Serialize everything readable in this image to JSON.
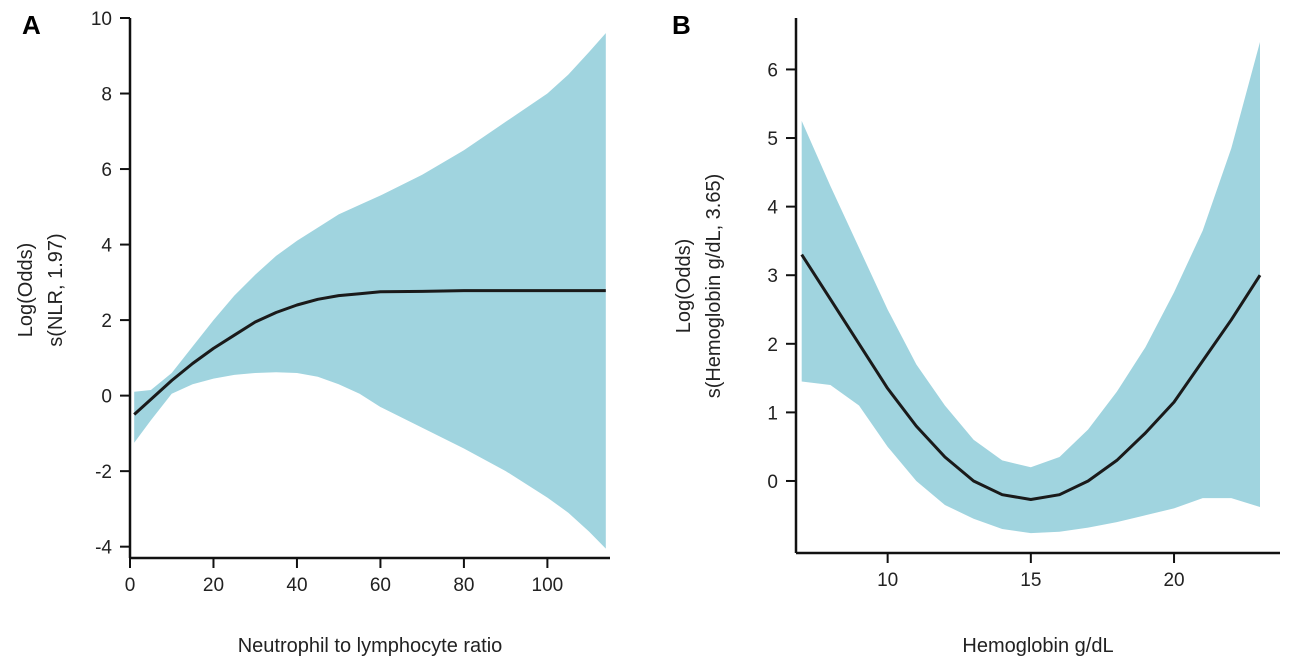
{
  "colors": {
    "band": "#a0d4df",
    "line": "#1a1a1a"
  },
  "chart_data": [
    {
      "panel": "A",
      "type": "line",
      "xlabel": "Neutrophil to lymphocyte ratio",
      "ylabel_lines": [
        "Log(Odds)",
        "s(NLR, 1.97)"
      ],
      "xlim": [
        0,
        115
      ],
      "ylim": [
        -4.3,
        10
      ],
      "xticks": [
        0,
        20,
        40,
        60,
        80,
        100
      ],
      "yticks": [
        -4,
        -2,
        0,
        2,
        4,
        6,
        8,
        10
      ],
      "x": [
        1,
        5,
        10,
        15,
        20,
        25,
        30,
        35,
        40,
        45,
        50,
        55,
        60,
        70,
        80,
        90,
        100,
        105,
        110,
        114
      ],
      "y": [
        -0.5,
        -0.1,
        0.4,
        0.85,
        1.25,
        1.6,
        1.95,
        2.2,
        2.4,
        2.55,
        2.65,
        2.7,
        2.75,
        2.76,
        2.78,
        2.78,
        2.78,
        2.78,
        2.78,
        2.78
      ],
      "upper": [
        0.1,
        0.15,
        0.6,
        1.3,
        2.0,
        2.65,
        3.2,
        3.7,
        4.1,
        4.45,
        4.8,
        5.05,
        5.3,
        5.85,
        6.5,
        7.25,
        8.0,
        8.5,
        9.1,
        9.6
      ],
      "lower": [
        -1.25,
        -0.65,
        0.05,
        0.3,
        0.45,
        0.55,
        0.6,
        0.62,
        0.6,
        0.5,
        0.3,
        0.05,
        -0.3,
        -0.85,
        -1.4,
        -2.0,
        -2.7,
        -3.1,
        -3.6,
        -4.05
      ]
    },
    {
      "panel": "B",
      "type": "line",
      "xlabel": "Hemoglobin g/dL",
      "ylabel_lines": [
        "Log(Odds)",
        "s(Hemoglobin g/dL, 3.65)"
      ],
      "xlim": [
        6.8,
        23.7
      ],
      "ylim": [
        -1.05,
        6.75
      ],
      "xticks": [
        10,
        15,
        20
      ],
      "yticks": [
        0,
        1,
        2,
        3,
        4,
        5,
        6
      ],
      "x": [
        7,
        8,
        9,
        10,
        11,
        12,
        13,
        14,
        15,
        16,
        17,
        18,
        19,
        20,
        21,
        22,
        23
      ],
      "y": [
        3.3,
        2.65,
        2.0,
        1.35,
        0.8,
        0.35,
        0.0,
        -0.2,
        -0.27,
        -0.2,
        0.0,
        0.3,
        0.7,
        1.15,
        1.75,
        2.35,
        3.0
      ],
      "upper": [
        5.25,
        4.3,
        3.4,
        2.5,
        1.7,
        1.1,
        0.6,
        0.3,
        0.2,
        0.35,
        0.75,
        1.3,
        1.95,
        2.75,
        3.65,
        4.85,
        6.4
      ],
      "lower": [
        1.45,
        1.4,
        1.1,
        0.5,
        0.0,
        -0.35,
        -0.55,
        -0.7,
        -0.76,
        -0.74,
        -0.68,
        -0.6,
        -0.5,
        -0.4,
        -0.25,
        -0.25,
        -0.38
      ]
    }
  ]
}
